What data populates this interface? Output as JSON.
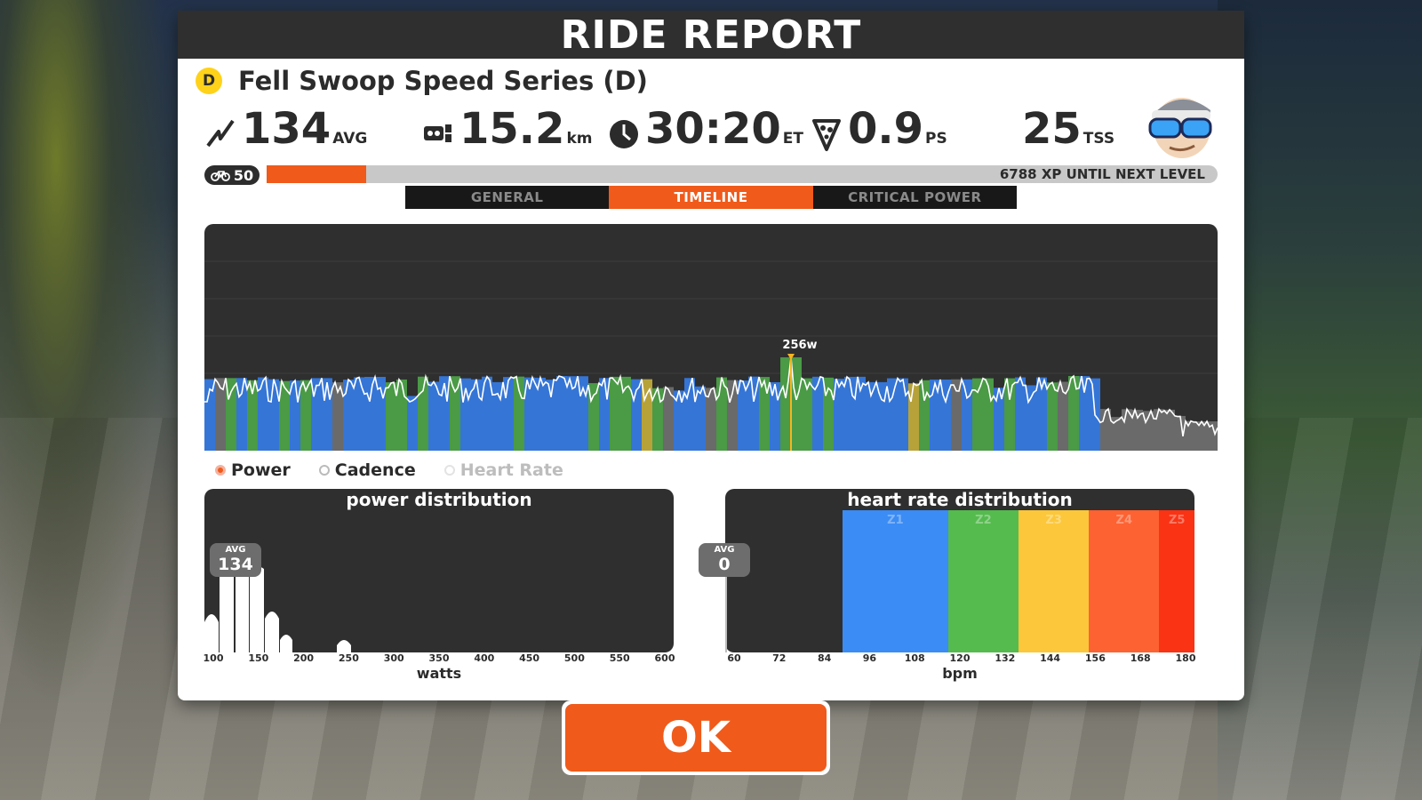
{
  "header": {
    "title": "RIDE REPORT"
  },
  "event": {
    "category": "D",
    "name": "Fell Swoop Speed Series (D)"
  },
  "stats": {
    "power": {
      "value": "134",
      "unit": "AVG",
      "icon": "power-bolt-icon"
    },
    "distance": {
      "value": "15.2",
      "unit": "km",
      "icon": "odometer-icon"
    },
    "time": {
      "value": "30:20",
      "unit": "ET",
      "icon": "clock-icon"
    },
    "pizza": {
      "value": "0.9",
      "unit": "PS",
      "icon": "pizza-slice-icon"
    },
    "tss": {
      "value": "25",
      "unit": "TSS"
    }
  },
  "level": {
    "icon": "bike-icon",
    "value": "50",
    "progress": 0.105,
    "xp_text": "6788 XP UNTIL NEXT LEVEL"
  },
  "tabs": [
    {
      "label": "GENERAL",
      "active": false
    },
    {
      "label": "TIMELINE",
      "active": true
    },
    {
      "label": "CRITICAL POWER",
      "active": false
    }
  ],
  "timeline": {
    "peak_label": "256w"
  },
  "toggles": [
    {
      "label": "Power",
      "selected": true
    },
    {
      "label": "Cadence",
      "selected": false
    },
    {
      "label": "Heart Rate",
      "selected": false,
      "disabled": true
    }
  ],
  "power_dist": {
    "title": "power distribution",
    "avg_label": "AVG",
    "avg_value": "134",
    "xlabel": "watts",
    "ticks": [
      "100",
      "150",
      "200",
      "250",
      "300",
      "350",
      "400",
      "450",
      "500",
      "550",
      "600"
    ]
  },
  "hr_dist": {
    "title": "heart rate distribution",
    "avg_label": "AVG",
    "avg_value": "0",
    "xlabel": "bpm",
    "ticks": [
      "60",
      "72",
      "84",
      "96",
      "108",
      "120",
      "132",
      "144",
      "156",
      "168",
      "180"
    ],
    "zones": [
      {
        "label": "Z1",
        "from": 90,
        "to": 117,
        "color": "#3b8cf5"
      },
      {
        "label": "Z2",
        "from": 117,
        "to": 135,
        "color": "#55bb4e"
      },
      {
        "label": "Z3",
        "from": 135,
        "to": 153,
        "color": "#fcc73a"
      },
      {
        "label": "Z4",
        "from": 153,
        "to": 171,
        "color": "#fd6232"
      },
      {
        "label": "Z5",
        "from": 171,
        "to": 180,
        "color": "#f93314"
      }
    ]
  },
  "ok_button": {
    "label": "OK"
  }
}
